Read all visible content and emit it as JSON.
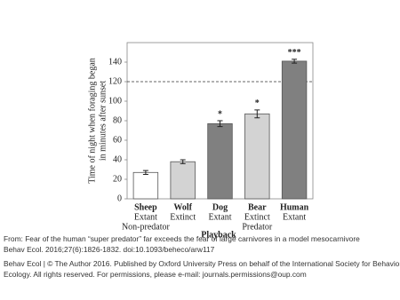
{
  "chart_data": {
    "type": "bar",
    "ylabel": [
      "Time of night when foraging began",
      "in minutes after sunset"
    ],
    "xlabel": "Playback",
    "categories": [
      "Sheep",
      "Wolf",
      "Dog",
      "Bear",
      "Human"
    ],
    "sublabels": [
      "Extant",
      "Extinct",
      "Extant",
      "Extinct",
      "Extant"
    ],
    "group_labels": [
      "Non-predator",
      "Predator"
    ],
    "values": [
      27,
      38,
      77,
      87,
      141
    ],
    "errors": [
      2,
      2,
      3,
      4,
      2
    ],
    "colors": [
      "#ffffff",
      "#d3d3d3",
      "#808080",
      "#d3d3d3",
      "#808080"
    ],
    "significance": [
      null,
      null,
      "*",
      "*",
      "***"
    ],
    "reference_line": 120,
    "ylim": [
      0,
      160
    ],
    "yticks": [
      0,
      20,
      40,
      60,
      80,
      100,
      120,
      140
    ]
  },
  "caption": [
    "From: Fear of the human “super predator” far exceeds the fear of large carnivores in a model mesocarnivore",
    "Behav Ecol. 2016;27(6):1826-1832. doi:10.1093/beheco/arw117",
    "Behav Ecol | © The Author 2016. Published by Oxford University Press on behalf of the International Society for Behavioral",
    "Ecology. All rights reserved. For permissions, please e-mail: journals.permissions@oup.com"
  ]
}
